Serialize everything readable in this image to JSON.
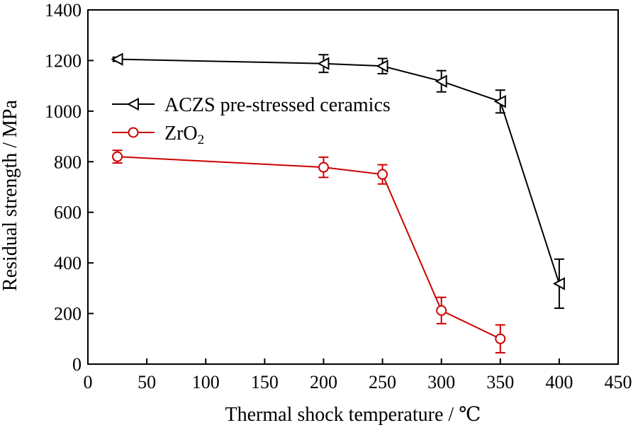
{
  "chart_data": {
    "type": "line",
    "title": "",
    "xlabel": "Thermal shock temperature / ℃",
    "ylabel": "Residual strength / MPa",
    "xlim": [
      0,
      450
    ],
    "ylim": [
      0,
      1400
    ],
    "xticks": [
      "0",
      "50",
      "100",
      "150",
      "200",
      "250",
      "300",
      "350",
      "400",
      "450"
    ],
    "yticks": [
      "0",
      "200",
      "400",
      "600",
      "800",
      "1000",
      "1200",
      "1400"
    ],
    "grid": false,
    "legend_position": "upper-left",
    "series": [
      {
        "name": "ACZS pre-stressed ceramics",
        "color": "#000000",
        "marker": "triangle-left",
        "x": [
          25,
          200,
          250,
          300,
          350,
          400
        ],
        "y": [
          1205,
          1188,
          1178,
          1118,
          1038,
          318
        ],
        "err": [
          8,
          35,
          30,
          42,
          45,
          97
        ]
      },
      {
        "name_main": "ZrO",
        "name_sub": "2",
        "color": "#cc0000",
        "marker": "circle",
        "x": [
          25,
          200,
          250,
          300,
          350
        ],
        "y": [
          820,
          778,
          750,
          212,
          100
        ],
        "err": [
          25,
          40,
          38,
          52,
          55
        ]
      }
    ]
  }
}
